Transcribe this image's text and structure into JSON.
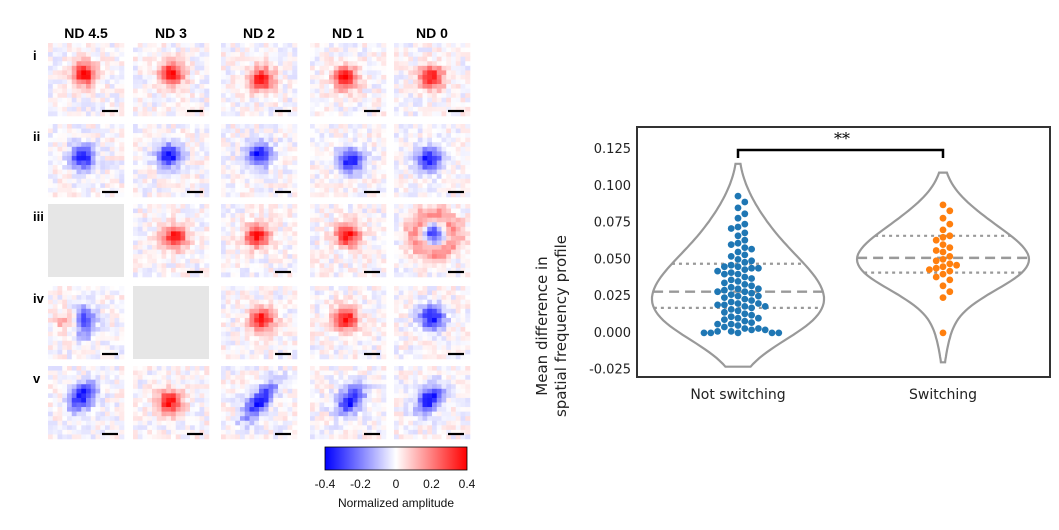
{
  "grid": {
    "columns": [
      "ND 4.5",
      "ND 3",
      "ND 2",
      "ND 1",
      "ND 0"
    ],
    "rows": [
      "i",
      "ii",
      "iii",
      "iv",
      "v"
    ],
    "cells": [
      [
        {
          "kind": "on",
          "shape": "round"
        },
        {
          "kind": "on",
          "shape": "round"
        },
        {
          "kind": "on",
          "shape": "round"
        },
        {
          "kind": "on",
          "shape": "round"
        },
        {
          "kind": "on",
          "shape": "round"
        }
      ],
      [
        {
          "kind": "off",
          "shape": "round"
        },
        {
          "kind": "off",
          "shape": "round"
        },
        {
          "kind": "off",
          "shape": "round"
        },
        {
          "kind": "off",
          "shape": "round"
        },
        {
          "kind": "off",
          "shape": "round"
        }
      ],
      [
        {
          "kind": "empty"
        },
        {
          "kind": "on",
          "shape": "round"
        },
        {
          "kind": "on",
          "shape": "round"
        },
        {
          "kind": "on",
          "shape": "round"
        },
        {
          "kind": "off",
          "shape": "ring"
        }
      ],
      [
        {
          "kind": "off",
          "shape": "cross"
        },
        {
          "kind": "empty"
        },
        {
          "kind": "on",
          "shape": "round"
        },
        {
          "kind": "on",
          "shape": "round"
        },
        {
          "kind": "off",
          "shape": "round"
        }
      ],
      [
        {
          "kind": "off",
          "shape": "oblique"
        },
        {
          "kind": "on",
          "shape": "round"
        },
        {
          "kind": "off",
          "shape": "elongated"
        },
        {
          "kind": "off",
          "shape": "oblique"
        },
        {
          "kind": "off",
          "shape": "oblique"
        }
      ]
    ],
    "colorbar": {
      "ticks": [
        "-0.4",
        "-0.2",
        "0",
        "0.2",
        "0.4"
      ],
      "label": "Normalized amplitude",
      "colors": {
        "low": "#0000ff",
        "mid": "#ffffff",
        "high": "#ff0000"
      }
    }
  },
  "chart_data": {
    "type": "violin",
    "ylabel_line1": "Mean difference in",
    "ylabel_line2": "spatial frequency profile",
    "categories": [
      "Not switching",
      "Switching"
    ],
    "ylim": [
      -0.03,
      0.14
    ],
    "yticks": [
      "-0.025",
      "0.000",
      "0.025",
      "0.050",
      "0.075",
      "0.100",
      "0.125"
    ],
    "significance": "**",
    "grid": false,
    "series": [
      {
        "color": "#1f77b4",
        "quartiles": [
          0.017,
          0.028,
          0.047
        ],
        "violin_range": [
          -0.023,
          0.115
        ],
        "values": [
          0.093,
          0.089,
          0.085,
          0.081,
          0.078,
          0.074,
          0.072,
          0.071,
          0.068,
          0.066,
          0.063,
          0.061,
          0.06,
          0.058,
          0.057,
          0.055,
          0.053,
          0.052,
          0.05,
          0.049,
          0.048,
          0.046,
          0.045,
          0.045,
          0.044,
          0.044,
          0.043,
          0.042,
          0.041,
          0.04,
          0.04,
          0.038,
          0.037,
          0.036,
          0.035,
          0.034,
          0.033,
          0.032,
          0.031,
          0.03,
          0.03,
          0.029,
          0.028,
          0.028,
          0.027,
          0.026,
          0.025,
          0.025,
          0.024,
          0.023,
          0.022,
          0.021,
          0.02,
          0.02,
          0.019,
          0.019,
          0.018,
          0.018,
          0.017,
          0.016,
          0.015,
          0.014,
          0.013,
          0.012,
          0.011,
          0.01,
          0.01,
          0.009,
          0.008,
          0.007,
          0.006,
          0.006,
          0.005,
          0.004,
          0.003,
          0.003,
          0.002,
          0.002,
          0.001,
          0.001,
          0.0,
          0.0,
          0.0,
          0.0,
          0.0
        ]
      },
      {
        "color": "#ff7f0e",
        "quartiles": [
          0.041,
          0.051,
          0.066
        ],
        "violin_range": [
          -0.02,
          0.109
        ],
        "values": [
          0.087,
          0.083,
          0.078,
          0.074,
          0.07,
          0.066,
          0.065,
          0.063,
          0.06,
          0.058,
          0.056,
          0.055,
          0.052,
          0.05,
          0.049,
          0.047,
          0.046,
          0.045,
          0.044,
          0.043,
          0.042,
          0.04,
          0.038,
          0.036,
          0.032,
          0.028,
          0.024,
          0.0
        ]
      }
    ]
  }
}
